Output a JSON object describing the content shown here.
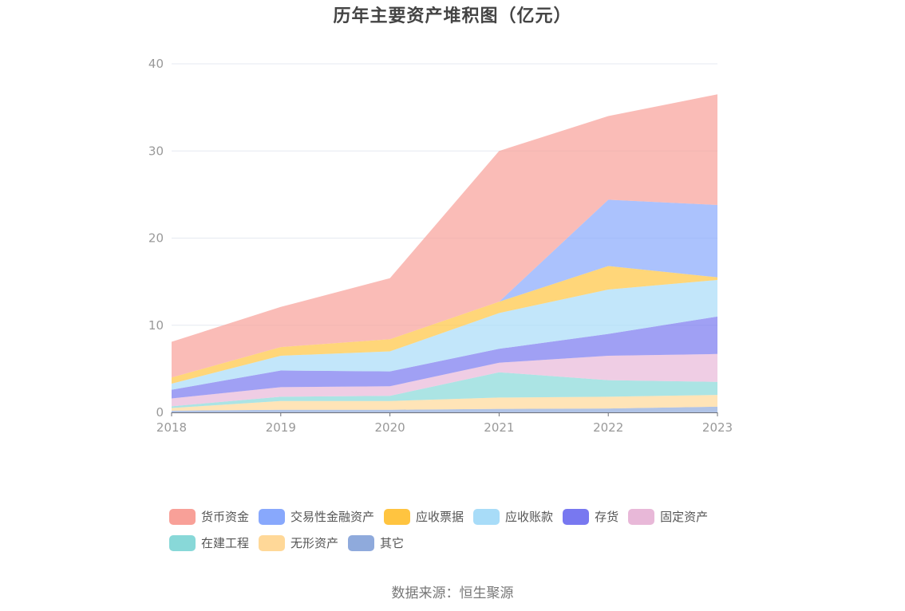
{
  "title": "历年主要资产堆积图（亿元）",
  "source": "数据来源：恒生聚源",
  "chart_data": {
    "type": "area",
    "stacked": true,
    "title": "历年主要资产堆积图（亿元）",
    "xlabel": "",
    "ylabel": "",
    "unit": "亿元",
    "x": [
      "2018",
      "2019",
      "2020",
      "2021",
      "2022",
      "2023"
    ],
    "ylim": [
      0,
      40
    ],
    "yticks": [
      "0",
      "10",
      "20",
      "30",
      "40"
    ],
    "grid": true,
    "legend_position": "bottom",
    "series": [
      {
        "name": "其它",
        "color": "#8faadc",
        "values": [
          0.2,
          0.3,
          0.3,
          0.4,
          0.45,
          0.65
        ]
      },
      {
        "name": "无形资产",
        "color": "#ffd898",
        "values": [
          0.3,
          1.0,
          1.0,
          1.3,
          1.35,
          1.35
        ]
      },
      {
        "name": "在建工程",
        "color": "#88d8d8",
        "values": [
          0.2,
          0.5,
          0.6,
          2.9,
          1.9,
          1.5
        ]
      },
      {
        "name": "固定资产",
        "color": "#e8b8d8",
        "values": [
          0.9,
          1.1,
          1.1,
          1.1,
          2.8,
          3.2
        ]
      },
      {
        "name": "存货",
        "color": "#7878f0",
        "values": [
          1.0,
          1.9,
          1.7,
          1.6,
          2.5,
          4.3
        ]
      },
      {
        "name": "应收账款",
        "color": "#a8dcf8",
        "values": [
          0.7,
          1.7,
          2.3,
          4.1,
          5.1,
          4.2
        ]
      },
      {
        "name": "应收票据",
        "color": "#ffc440",
        "values": [
          0.7,
          1.0,
          1.4,
          1.3,
          2.7,
          0.3
        ]
      },
      {
        "name": "交易性金融资产",
        "color": "#88a8fc",
        "values": [
          0,
          0,
          0,
          0,
          7.6,
          8.3
        ]
      },
      {
        "name": "货币资金",
        "color": "#f8a098",
        "values": [
          4.1,
          4.6,
          7.0,
          17.3,
          9.6,
          12.7
        ]
      }
    ],
    "legend_order": [
      "货币资金",
      "交易性金融资产",
      "应收票据",
      "应收账款",
      "存货",
      "固定资产",
      "在建工程",
      "无形资产",
      "其它"
    ]
  }
}
